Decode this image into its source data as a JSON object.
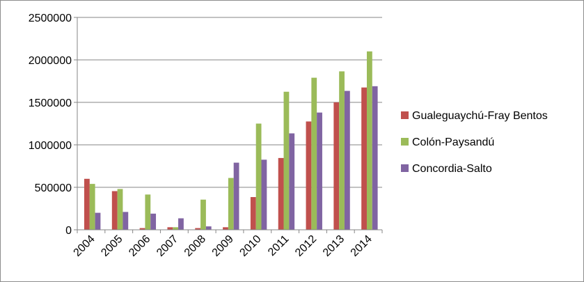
{
  "chart_data": {
    "type": "bar",
    "title": "",
    "xlabel": "",
    "ylabel": "",
    "categories": [
      "2004",
      "2005",
      "2006",
      "2007",
      "2008",
      "2009",
      "2010",
      "2011",
      "2012",
      "2013",
      "2014"
    ],
    "ylim": [
      0,
      2500000
    ],
    "yticks": [
      0,
      500000,
      1000000,
      1500000,
      2000000,
      2500000
    ],
    "ytick_labels": [
      "0",
      "500000",
      "1000000",
      "1500000",
      "2000000",
      "2500000"
    ],
    "grid": "horizontal",
    "legend_position": "right",
    "series": [
      {
        "name": "Gualeguaychú-Fray Bentos",
        "color": "#C0504D",
        "values": [
          600000,
          455000,
          20000,
          30000,
          20000,
          30000,
          385000,
          845000,
          1275000,
          1500000,
          1675000
        ]
      },
      {
        "name": "Colón-Paysandú",
        "color": "#9BBB59",
        "values": [
          540000,
          480000,
          415000,
          30000,
          355000,
          610000,
          1250000,
          1625000,
          1790000,
          1865000,
          2100000
        ]
      },
      {
        "name": "Concordia-Salto",
        "color": "#8064A2",
        "values": [
          200000,
          210000,
          190000,
          135000,
          40000,
          790000,
          825000,
          1135000,
          1380000,
          1635000,
          1690000
        ]
      }
    ]
  }
}
